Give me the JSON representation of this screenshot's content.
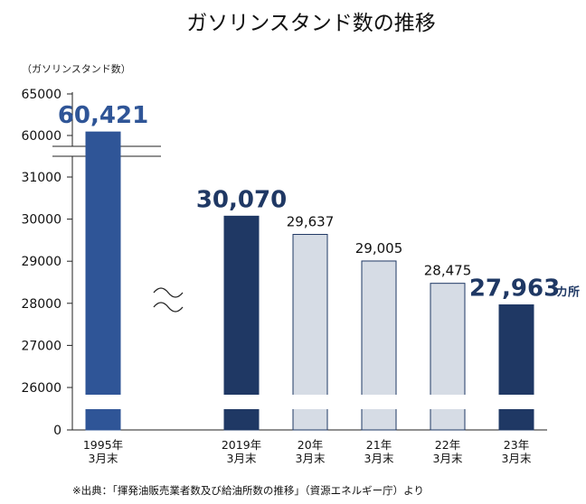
{
  "chart_data": {
    "type": "bar",
    "title": "ガソリンスタンド数の推移",
    "ylabel": "（ガソリンスタンド数）",
    "y_ticks": [
      "65000",
      "60000",
      "31000",
      "30000",
      "29000",
      "28000",
      "27000",
      "26000",
      "0"
    ],
    "categories": [
      [
        "1995年",
        "3月末"
      ],
      [
        "2019年",
        "3月末"
      ],
      [
        "20年",
        "3月末"
      ],
      [
        "21年",
        "3月末"
      ],
      [
        "22年",
        "3月末"
      ],
      [
        "23年",
        "3月末"
      ]
    ],
    "values": [
      60421,
      30070,
      29637,
      29005,
      28475,
      27963
    ],
    "value_labels": [
      "60,421",
      "30,070",
      "29,637",
      "29,005",
      "28,475",
      "27,963"
    ],
    "value_suffix": "カ所",
    "bar_colors": [
      "#2f5597",
      "#1f3864",
      "#d6dce5",
      "#d6dce5",
      "#d6dce5",
      "#1f3864"
    ],
    "label_colors": [
      "#2f5597",
      "#1f3864",
      "#111111",
      "#111111",
      "#111111",
      "#1f3864"
    ],
    "emphasized": [
      true,
      true,
      false,
      false,
      false,
      true
    ],
    "axis_break": true,
    "grid": false,
    "source_note": "※出典：「揮発油販売業者数及び給油所数の推移」（資源エネルギー庁）より"
  }
}
